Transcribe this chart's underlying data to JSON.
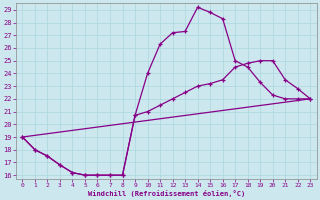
{
  "xlabel": "Windchill (Refroidissement éolien,°C)",
  "xlim": [
    -0.5,
    23.5
  ],
  "ylim": [
    15.7,
    29.5
  ],
  "xticks": [
    0,
    1,
    2,
    3,
    4,
    5,
    6,
    7,
    8,
    9,
    10,
    11,
    12,
    13,
    14,
    15,
    16,
    17,
    18,
    19,
    20,
    21,
    22,
    23
  ],
  "yticks": [
    16,
    17,
    18,
    19,
    20,
    21,
    22,
    23,
    24,
    25,
    26,
    27,
    28,
    29
  ],
  "bg_color": "#cce8ee",
  "line_color": "#880088",
  "grid_color": "#b0d8e0",
  "curve1_x": [
    0,
    1,
    2,
    3,
    4,
    5,
    6,
    7,
    8,
    9,
    10,
    11,
    12,
    13,
    14,
    15,
    16,
    17,
    18,
    19,
    20,
    21,
    22,
    23
  ],
  "curve1_y": [
    19.0,
    18.0,
    17.5,
    16.8,
    16.2,
    16.0,
    16.0,
    16.0,
    16.0,
    20.7,
    24.0,
    26.3,
    27.2,
    27.3,
    29.2,
    28.8,
    28.3,
    25.0,
    24.5,
    23.3,
    22.3,
    22.0,
    22.0,
    22.0
  ],
  "curve2_x": [
    0,
    1,
    2,
    3,
    4,
    5,
    6,
    7,
    8,
    9,
    10,
    11,
    12,
    13,
    14,
    15,
    16,
    17,
    18,
    19,
    20,
    21,
    22,
    23
  ],
  "curve2_y": [
    19.0,
    18.0,
    17.5,
    16.8,
    16.2,
    16.0,
    16.0,
    16.0,
    16.0,
    20.7,
    21.0,
    21.5,
    22.0,
    22.5,
    23.0,
    23.2,
    23.5,
    24.5,
    24.8,
    25.0,
    25.0,
    23.5,
    22.8,
    22.0
  ],
  "curve3_x": [
    0,
    23
  ],
  "curve3_y": [
    19.0,
    22.0
  ]
}
